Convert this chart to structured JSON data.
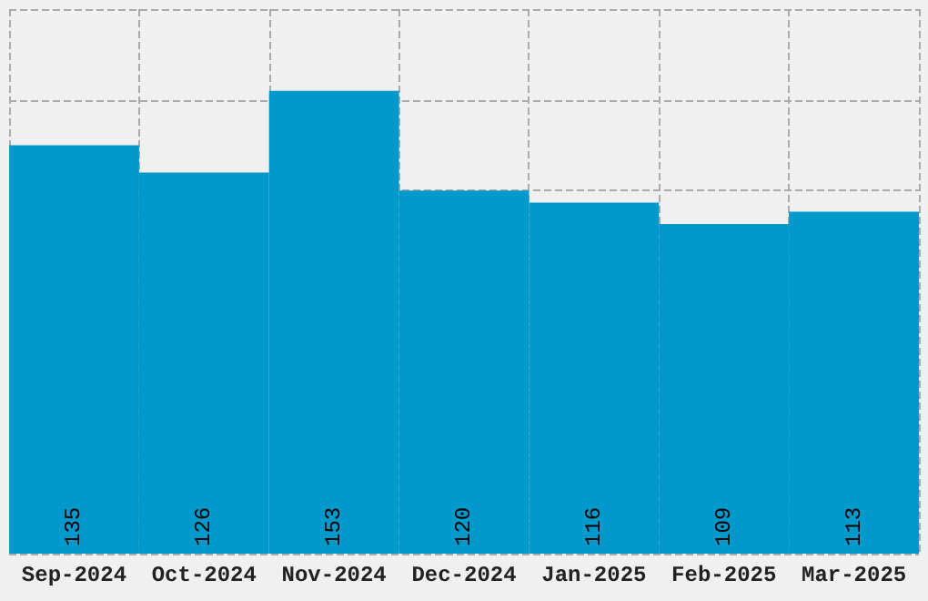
{
  "chart_data": {
    "type": "bar",
    "categories": [
      "Sep-2024",
      "Oct-2024",
      "Nov-2024",
      "Dec-2024",
      "Jan-2025",
      "Feb-2025",
      "Mar-2025"
    ],
    "values": [
      135,
      126,
      153,
      120,
      116,
      109,
      113
    ],
    "color": "#0099cc",
    "tick_labels": "x",
    "grid": true,
    "data_labels": true
  }
}
